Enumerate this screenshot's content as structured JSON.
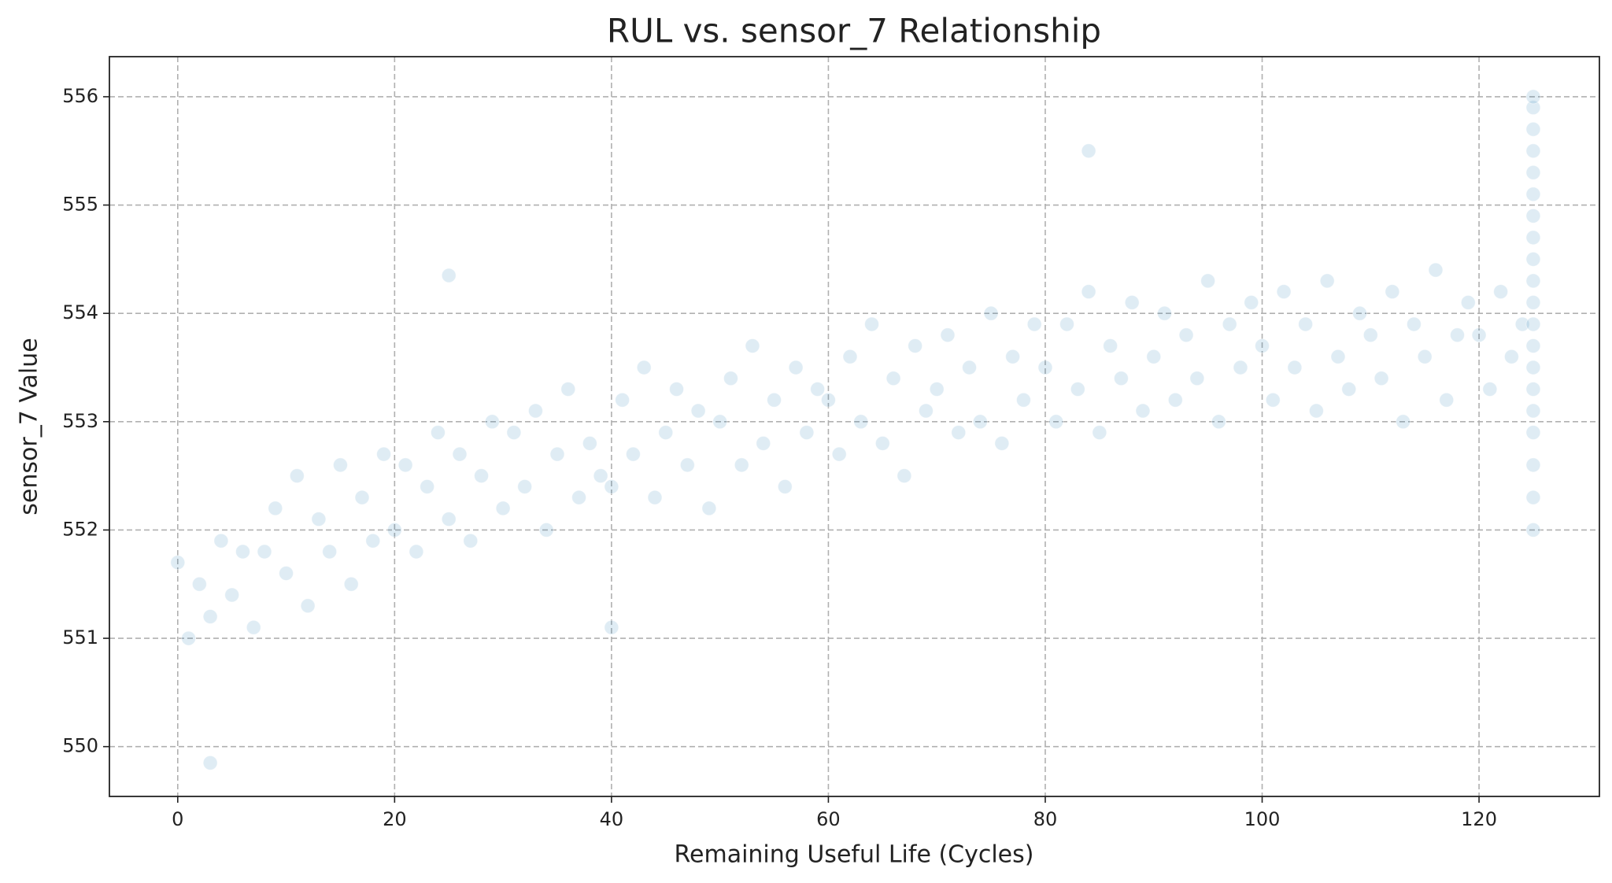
{
  "chart_data": {
    "type": "scatter",
    "title": "RUL vs. sensor_7 Relationship",
    "x_label": "Remaining Useful Life (Cycles)",
    "y_label": "sensor_7 Value",
    "color": "#1f77b4",
    "grid": true,
    "xlim": [
      -6.3,
      131.1
    ],
    "ylim": [
      549.54,
      556.37
    ],
    "xticks": [
      0,
      20,
      40,
      60,
      80,
      100,
      120
    ],
    "yticks": [
      550,
      551,
      552,
      553,
      554,
      555,
      556
    ],
    "x": [
      0,
      1,
      2,
      3,
      4,
      5,
      6,
      7,
      8,
      9,
      10,
      11,
      12,
      13,
      14,
      15,
      16,
      17,
      18,
      19,
      20,
      21,
      22,
      23,
      24,
      25,
      26,
      27,
      28,
      29,
      30,
      31,
      32,
      33,
      34,
      35,
      36,
      37,
      38,
      39,
      40,
      41,
      42,
      43,
      44,
      45,
      46,
      47,
      48,
      49,
      50,
      51,
      52,
      53,
      54,
      55,
      56,
      57,
      58,
      59,
      60,
      61,
      62,
      63,
      64,
      65,
      66,
      67,
      68,
      69,
      70,
      71,
      72,
      73,
      74,
      75,
      76,
      77,
      78,
      79,
      80,
      81,
      82,
      83,
      84,
      85,
      86,
      87,
      88,
      89,
      90,
      91,
      92,
      93,
      94,
      95,
      96,
      97,
      98,
      99,
      100,
      101,
      102,
      103,
      104,
      105,
      106,
      107,
      108,
      109,
      110,
      111,
      112,
      113,
      114,
      115,
      116,
      117,
      118,
      119,
      120,
      121,
      122,
      123,
      124,
      125,
      125,
      125,
      125,
      125,
      125,
      125,
      125,
      125,
      125,
      125,
      125,
      125,
      125,
      125,
      125,
      125,
      125,
      125,
      125,
      3,
      84,
      40,
      25
    ],
    "values": [
      551.7,
      551.0,
      551.5,
      551.2,
      551.9,
      551.4,
      551.8,
      551.1,
      551.8,
      552.2,
      551.6,
      552.5,
      551.3,
      552.1,
      551.8,
      552.6,
      551.5,
      552.3,
      551.9,
      552.7,
      552.0,
      552.6,
      551.8,
      552.4,
      552.9,
      552.1,
      552.7,
      551.9,
      552.5,
      553.0,
      552.2,
      552.9,
      552.4,
      553.1,
      552.0,
      552.7,
      553.3,
      552.3,
      552.8,
      552.5,
      552.4,
      553.2,
      552.7,
      553.5,
      552.3,
      552.9,
      553.3,
      552.6,
      553.1,
      552.2,
      553.0,
      553.4,
      552.6,
      553.7,
      552.8,
      553.2,
      552.4,
      553.5,
      552.9,
      553.3,
      553.2,
      552.7,
      553.6,
      553.0,
      553.9,
      552.8,
      553.4,
      552.5,
      553.7,
      553.1,
      553.3,
      553.8,
      552.9,
      553.5,
      553.0,
      554.0,
      552.8,
      553.6,
      553.2,
      553.9,
      553.5,
      553.0,
      553.9,
      553.3,
      554.2,
      552.9,
      553.7,
      553.4,
      554.1,
      553.1,
      553.6,
      554.0,
      553.2,
      553.8,
      553.4,
      554.3,
      553.0,
      553.9,
      553.5,
      554.1,
      553.7,
      553.2,
      554.2,
      553.5,
      553.9,
      553.1,
      554.3,
      553.6,
      553.3,
      554.0,
      553.8,
      553.4,
      554.2,
      553.0,
      553.9,
      553.6,
      554.4,
      553.2,
      553.8,
      554.1,
      553.8,
      553.3,
      554.2,
      553.6,
      553.9,
      552.0,
      552.3,
      552.6,
      552.9,
      553.1,
      553.3,
      553.5,
      553.7,
      553.9,
      554.1,
      554.3,
      554.5,
      554.7,
      554.9,
      555.1,
      555.3,
      555.5,
      555.7,
      555.9,
      556.0,
      549.85,
      555.5,
      551.1,
      554.35
    ]
  }
}
